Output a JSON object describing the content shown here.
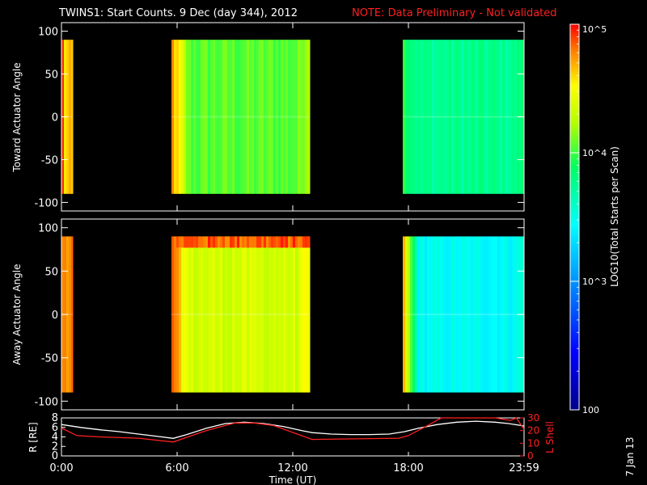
{
  "title": {
    "main": "TWINS1: Start Counts.  9 Dec (day 344), 2012",
    "note": "NOTE: Data Preliminary - Not validated"
  },
  "side_date": "7 Jan 13",
  "colorbar": {
    "label": "LOG10(Total Starts per Scan)",
    "scale": "log",
    "range": [
      100,
      100000
    ],
    "ticks": [
      "100",
      "10^3",
      "10^4",
      "10^5"
    ]
  },
  "time_axis": {
    "label": "Time (UT)",
    "ticks": [
      "0:00",
      "6:00",
      "12:00",
      "18:00",
      "23:59"
    ]
  },
  "chart_data": [
    {
      "type": "heatmap",
      "name": "toward",
      "ylabel": "Toward Actuator Angle",
      "ylim": [
        -110,
        110
      ],
      "yticks": [
        "100",
        "50",
        "0",
        "-50",
        "-100"
      ],
      "x_unit": "hours UT",
      "angle_range": [
        -90,
        90
      ],
      "z_unit": "log10 counts",
      "segments": [
        {
          "start": 0.0,
          "end": 0.6,
          "level": 4.6,
          "start_edge": 4.9
        },
        {
          "start": 5.7,
          "end": 12.9,
          "level": 4.05,
          "start_edge": 4.75,
          "end_edge": 4.35
        },
        {
          "start": 17.7,
          "end": 24.0,
          "level": 3.75,
          "start_edge": 3.95,
          "end_edge": 3.85
        }
      ]
    },
    {
      "type": "heatmap",
      "name": "away",
      "ylabel": "Away Actuator Angle",
      "ylim": [
        -110,
        110
      ],
      "yticks": [
        "100",
        "50",
        "0",
        "-50",
        "-100"
      ],
      "x_unit": "hours UT",
      "angle_range": [
        -90,
        90
      ],
      "z_unit": "log10 counts",
      "segments": [
        {
          "start": 0.0,
          "end": 0.6,
          "level": 4.8,
          "start_edge": 4.8
        },
        {
          "start": 5.7,
          "end": 12.9,
          "level": 4.35,
          "start_edge": 4.8,
          "end_edge": 4.5,
          "top_band": 4.85
        },
        {
          "start": 17.7,
          "end": 24.0,
          "level": 3.45,
          "start_edge": 4.6,
          "end_edge": 3.6
        }
      ]
    },
    {
      "type": "line",
      "name": "orbit",
      "ylabel": "R [RE]",
      "ylabel_right": "L Shell",
      "ylim": [
        0,
        8
      ],
      "ylim_right": [
        0,
        30
      ],
      "yticks": [
        "8",
        "6",
        "4",
        "2",
        "0"
      ],
      "yticks_right": [
        "30",
        "20",
        "10",
        "0"
      ],
      "x_unit": "hours UT",
      "series": [
        {
          "name": "R",
          "color": "#ffffff",
          "axis": "left",
          "x": [
            0,
            1,
            2,
            3,
            4,
            5,
            5.8,
            6.5,
            7.5,
            8.5,
            9.5,
            10.5,
            11.5,
            12.5,
            13,
            14,
            15,
            16,
            17,
            17.8,
            18.5,
            19.5,
            20.5,
            21.5,
            22.5,
            23.2,
            24
          ],
          "y": [
            6.6,
            6.0,
            5.5,
            5.1,
            4.6,
            4.1,
            3.7,
            4.5,
            5.8,
            6.8,
            7.1,
            6.8,
            6.2,
            5.3,
            4.9,
            4.6,
            4.5,
            4.5,
            4.6,
            5.1,
            5.8,
            6.6,
            7.1,
            7.3,
            7.1,
            6.8,
            6.3
          ]
        },
        {
          "name": "L Shell",
          "color": "#ff2020",
          "axis": "right",
          "x": [
            0,
            0.8,
            2,
            4,
            5.8,
            7.5,
            9,
            10,
            11,
            13,
            17.5,
            18,
            19,
            19.7,
            22.5,
            23.3,
            23.6,
            24
          ],
          "y": [
            22,
            16,
            15,
            14,
            11,
            20,
            26,
            26,
            24,
            13,
            14,
            16,
            24,
            30,
            30,
            28,
            30,
            21
          ]
        }
      ]
    }
  ]
}
